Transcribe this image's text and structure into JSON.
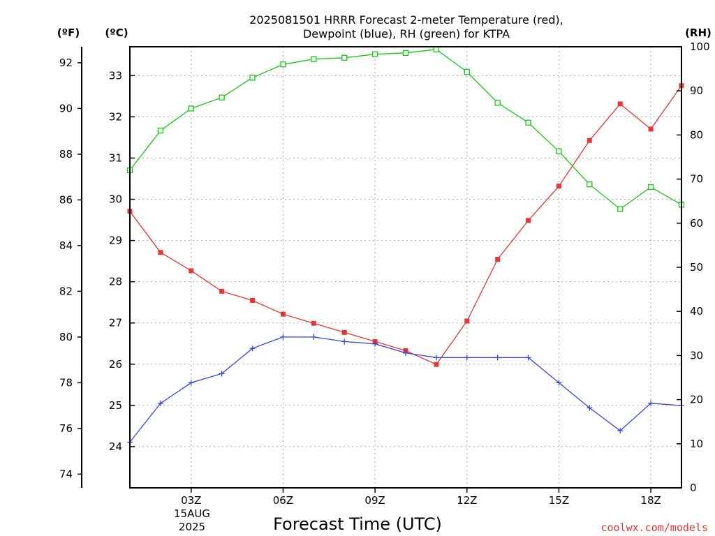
{
  "header": {
    "title_line1": "2025081501 HRRR Forecast 2-meter Temperature (red),",
    "title_line2": "Dewpoint (blue), RH (green) for KTPA"
  },
  "units": {
    "fahrenheit": "(ºF)",
    "celsius": "(ºC)",
    "rh": "(RH)"
  },
  "footer": {
    "credit": "coolwx.com/models"
  },
  "colors": {
    "temperature": "#ee3333",
    "dewpoint": "#3344ee",
    "rh": "#11cc11"
  },
  "chart_data": {
    "type": "line",
    "title": "2025081501 HRRR Forecast 2-meter Temperature (red), Dewpoint (blue), RH (green) for KTPA",
    "xlabel": "Forecast Time (UTC)",
    "date_label": [
      "15AUG",
      "2025"
    ],
    "x": [
      "01Z",
      "02Z",
      "03Z",
      "04Z",
      "05Z",
      "06Z",
      "07Z",
      "08Z",
      "09Z",
      "10Z",
      "11Z",
      "12Z",
      "13Z",
      "14Z",
      "15Z",
      "16Z",
      "17Z",
      "18Z",
      "19Z"
    ],
    "xlim": [
      "01Z",
      "19Z"
    ],
    "xticks": [
      "03Z",
      "06Z",
      "09Z",
      "12Z",
      "15Z",
      "18Z"
    ],
    "y_left_f": {
      "label": "(ºF)",
      "ylim": [
        73.4,
        92.7
      ],
      "ticks": [
        74,
        76,
        78,
        80,
        82,
        84,
        86,
        88,
        90,
        92
      ]
    },
    "y_left_c": {
      "label": "(ºC)",
      "ylim": [
        23,
        33.7
      ],
      "ticks": [
        24,
        25,
        26,
        27,
        28,
        29,
        30,
        31,
        32,
        33
      ]
    },
    "y_right_rh": {
      "label": "(RH)",
      "ylim": [
        0,
        100
      ],
      "ticks": [
        0,
        10,
        20,
        30,
        40,
        50,
        60,
        70,
        80,
        90,
        100
      ]
    },
    "grid": true,
    "series": [
      {
        "name": "Temperature (red)",
        "axis": "F",
        "marker": "filled-square",
        "values": [
          85.5,
          83.7,
          82.9,
          82.0,
          81.6,
          81.0,
          80.6,
          80.2,
          79.8,
          79.4,
          78.8,
          80.7,
          83.4,
          85.1,
          86.6,
          88.6,
          90.2,
          89.1,
          91.0
        ]
      },
      {
        "name": "Dewpoint (blue)",
        "axis": "F",
        "marker": "plus",
        "values": [
          75.4,
          77.1,
          78.0,
          78.4,
          79.5,
          80.0,
          80.0,
          79.8,
          79.7,
          79.3,
          79.1,
          79.1,
          79.1,
          79.1,
          78.0,
          76.9,
          75.9,
          77.1,
          77.0
        ]
      },
      {
        "name": "RH (green)",
        "axis": "RH",
        "marker": "open-square",
        "values": [
          72,
          81,
          86,
          88.5,
          93,
          96,
          97.2,
          97.5,
          98.3,
          98.6,
          99.4,
          94.3,
          87.3,
          82.8,
          76.3,
          68.8,
          63.2,
          68.2,
          64.2
        ]
      }
    ]
  }
}
